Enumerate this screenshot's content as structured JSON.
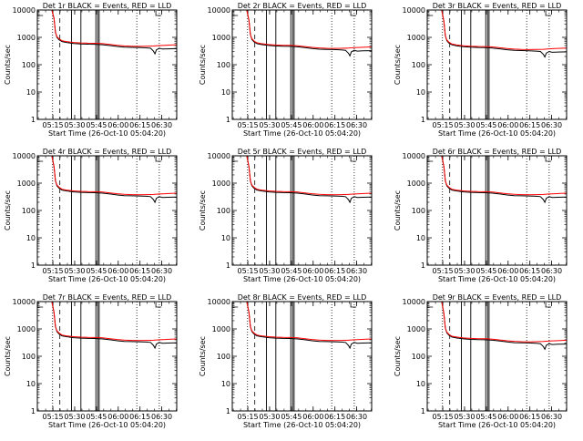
{
  "chart_data": {
    "type": "line",
    "layout": "3x3 small multiples",
    "ylabel": "Counts/sec",
    "xlabel": "Start Time (26-Oct-10 05:04:20)",
    "yscale": "log",
    "ylim": [
      1,
      10000
    ],
    "y_ticks": [
      "1",
      "10",
      "100",
      "1000",
      "10000"
    ],
    "xlim_minutes_from_start": [
      0,
      96
    ],
    "x_ticks": [
      {
        "label": "05:15",
        "minute": 10.7
      },
      {
        "label": "05:30",
        "minute": 25.7
      },
      {
        "label": "05:45",
        "minute": 40.7
      },
      {
        "label": "06:00",
        "minute": 55.7
      },
      {
        "label": "06:15",
        "minute": 70.7
      },
      {
        "label": "06:30",
        "minute": 85.7
      }
    ],
    "series_colors": {
      "events": "#000000",
      "lld": "#ff0000"
    },
    "vertical_markers": {
      "dotted_minutes": [
        10.5,
        68.5,
        84.0
      ],
      "dashed_minutes": [
        15.5
      ],
      "solid_minutes": [
        23.5,
        30.0,
        40.3,
        41.6,
        42.6
      ]
    },
    "events_curve": [
      [
        0,
        10000
      ],
      [
        6,
        10000
      ],
      [
        10,
        10000
      ],
      [
        11.5,
        4000
      ],
      [
        12.5,
        1200
      ],
      [
        13.5,
        800
      ],
      [
        15,
        650
      ],
      [
        17,
        560
      ],
      [
        20,
        520
      ],
      [
        25,
        480
      ],
      [
        30,
        460
      ],
      [
        35,
        450
      ],
      [
        40,
        445
      ],
      [
        45,
        430
      ],
      [
        50,
        400
      ],
      [
        55,
        370
      ],
      [
        60,
        350
      ],
      [
        65,
        345
      ],
      [
        70,
        340
      ],
      [
        75,
        330
      ],
      [
        78,
        320
      ],
      [
        80,
        250
      ],
      [
        81,
        200
      ],
      [
        82,
        280
      ],
      [
        84,
        320
      ],
      [
        86,
        300
      ],
      [
        90,
        305
      ],
      [
        96,
        310
      ]
    ],
    "lld_curve": [
      [
        0,
        10000
      ],
      [
        6,
        10000
      ],
      [
        10,
        10000
      ],
      [
        11.5,
        4000
      ],
      [
        12.5,
        1200
      ],
      [
        13.5,
        850
      ],
      [
        15,
        700
      ],
      [
        17,
        600
      ],
      [
        20,
        560
      ],
      [
        25,
        520
      ],
      [
        30,
        500
      ],
      [
        35,
        490
      ],
      [
        40,
        485
      ],
      [
        45,
        470
      ],
      [
        50,
        440
      ],
      [
        55,
        410
      ],
      [
        60,
        390
      ],
      [
        65,
        380
      ],
      [
        70,
        375
      ],
      [
        75,
        380
      ],
      [
        80,
        385
      ],
      [
        84,
        400
      ],
      [
        88,
        410
      ],
      [
        92,
        420
      ],
      [
        96,
        430
      ]
    ],
    "panels": [
      {
        "title": "Det 1r BLACK = Events, RED = LLD",
        "scale": 1.25
      },
      {
        "title": "Det 2r BLACK = Events, RED = LLD",
        "scale": 1.05
      },
      {
        "title": "Det 3r BLACK = Events, RED = LLD",
        "scale": 0.95
      },
      {
        "title": "Det 4r BLACK = Events, RED = LLD",
        "scale": 1.0
      },
      {
        "title": "Det 5r BLACK = Events, RED = LLD",
        "scale": 1.0
      },
      {
        "title": "Det 6r BLACK = Events, RED = LLD",
        "scale": 1.0
      },
      {
        "title": "Det 7r BLACK = Events, RED = LLD",
        "scale": 1.0
      },
      {
        "title": "Det 8r BLACK = Events, RED = LLD",
        "scale": 1.0
      },
      {
        "title": "Det 9r BLACK = Events, RED = LLD",
        "scale": 0.9
      }
    ]
  }
}
